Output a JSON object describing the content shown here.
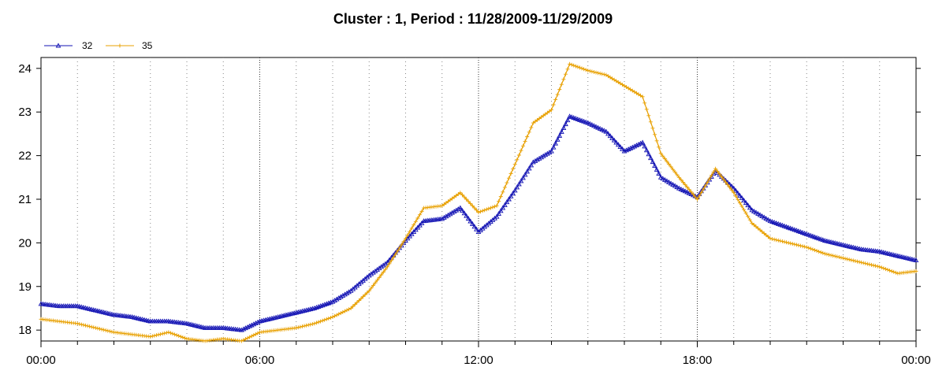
{
  "chart_data": {
    "type": "line",
    "title": "Cluster : 1, Period : 11/28/2009-11/29/2009",
    "xlabel": "",
    "ylabel": "",
    "x_hours": [
      0,
      0.5,
      1,
      1.5,
      2,
      2.5,
      3,
      3.5,
      4,
      4.5,
      5,
      5.5,
      6,
      6.5,
      7,
      7.5,
      8,
      8.5,
      9,
      9.5,
      10,
      10.5,
      11,
      11.5,
      12,
      12.5,
      13,
      13.5,
      14,
      14.5,
      15,
      15.5,
      16,
      16.5,
      17,
      17.5,
      18,
      18.5,
      19,
      19.5,
      20,
      20.5,
      21,
      21.5,
      22,
      22.5,
      23,
      23.5,
      24
    ],
    "xlim": [
      0,
      24
    ],
    "ylim": [
      17.75,
      24.25
    ],
    "x_ticks": [
      {
        "value": 0,
        "label": "00:00"
      },
      {
        "value": 6,
        "label": "06:00"
      },
      {
        "value": 12,
        "label": "12:00"
      },
      {
        "value": 18,
        "label": "18:00"
      },
      {
        "value": 24,
        "label": "00:00"
      }
    ],
    "y_ticks": [
      18,
      19,
      20,
      21,
      22,
      23,
      24
    ],
    "grid": {
      "x_minor_dotted": true,
      "x_major_dotted": true,
      "y": false
    },
    "legend_position": "top-left",
    "series": [
      {
        "name": "32",
        "color": "#1414b4",
        "marker": "triangle",
        "values": [
          18.6,
          18.55,
          18.55,
          18.45,
          18.35,
          18.3,
          18.2,
          18.2,
          18.15,
          18.05,
          18.05,
          18.0,
          18.2,
          18.3,
          18.4,
          18.5,
          18.65,
          18.9,
          19.25,
          19.55,
          20.05,
          20.5,
          20.55,
          20.8,
          20.25,
          20.6,
          21.2,
          21.85,
          22.1,
          22.9,
          22.75,
          22.55,
          22.1,
          22.3,
          21.5,
          21.25,
          21.05,
          21.65,
          21.25,
          20.75,
          20.5,
          20.35,
          20.2,
          20.05,
          19.95,
          19.85,
          19.8,
          19.7,
          19.6
        ]
      },
      {
        "name": "35",
        "color": "#e8a000",
        "marker": "plus",
        "values": [
          18.25,
          18.2,
          18.15,
          18.05,
          17.95,
          17.9,
          17.85,
          17.95,
          17.8,
          17.75,
          17.8,
          17.75,
          17.95,
          18.0,
          18.05,
          18.15,
          18.3,
          18.5,
          18.9,
          19.45,
          20.1,
          20.8,
          20.85,
          21.15,
          20.7,
          20.85,
          21.8,
          22.75,
          23.05,
          24.1,
          23.95,
          23.85,
          23.6,
          23.35,
          22.05,
          21.5,
          21.0,
          21.7,
          21.15,
          20.45,
          20.1,
          20.0,
          19.9,
          19.75,
          19.65,
          19.55,
          19.45,
          19.3,
          19.35
        ]
      }
    ]
  }
}
